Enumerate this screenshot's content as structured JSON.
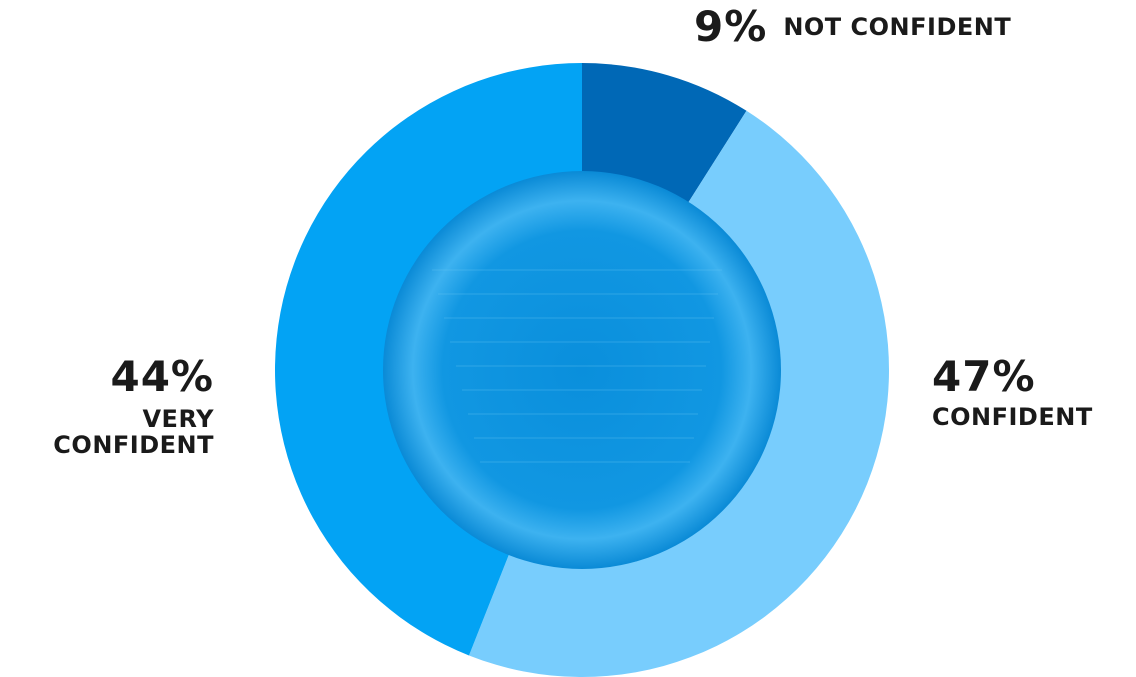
{
  "chart_data": {
    "type": "pie",
    "categories": [
      "NOT CONFIDENT",
      "CONFIDENT",
      "VERY CONFIDENT"
    ],
    "values": [
      9,
      47,
      44
    ],
    "value_labels": [
      "9%",
      "47%",
      "44%"
    ],
    "colors": [
      "#0068b6",
      "#78cdfd",
      "#03a3f4"
    ]
  }
}
